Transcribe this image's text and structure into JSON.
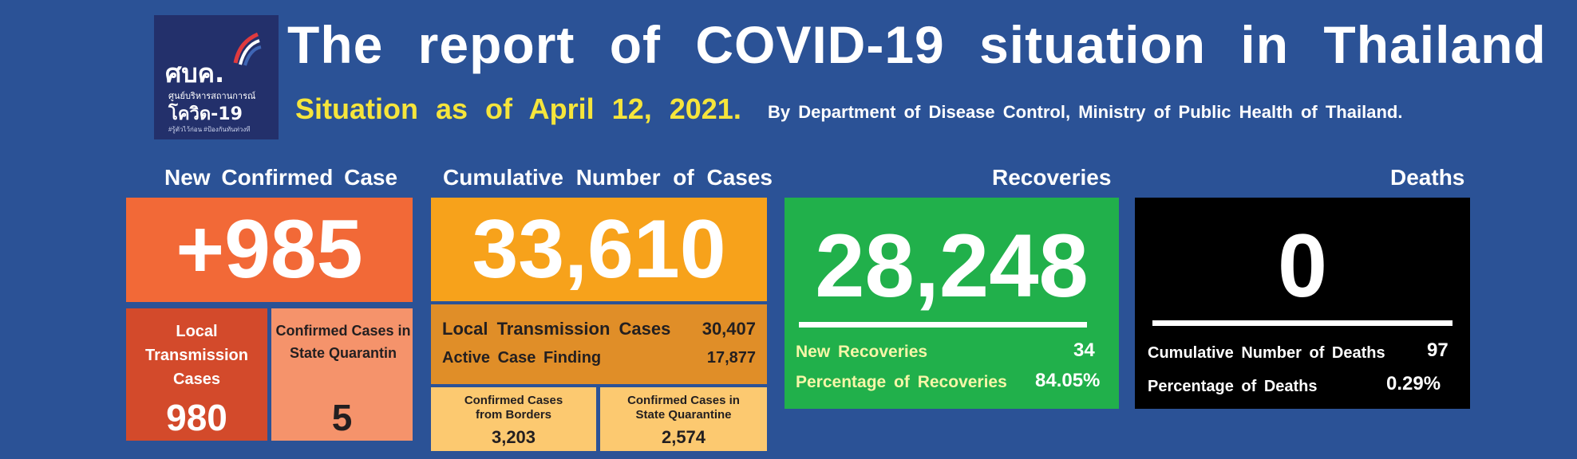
{
  "logo": {
    "name": "ศบค.",
    "line1": "ศูนย์บริหารสถานการณ์",
    "line2": "โควิด-19",
    "tagline": "#รู้ตัวไว้ก่อน #ป้องกันทันท่วงที"
  },
  "header": {
    "title": "The report of COVID-19 situation in Thailand",
    "subtitle": "Situation as of April 12, 2021.",
    "byline": "By Department of Disease Control, Ministry of Public Health of Thailand."
  },
  "new_confirmed": {
    "heading": "New Confirmed Case",
    "value": "+985",
    "local_label": "Local Transmission Cases",
    "local_value": "980",
    "quarantine_label": "Confirmed Cases in State Quarantin",
    "quarantine_value": "5"
  },
  "cumulative": {
    "heading": "Cumulative Number of Cases",
    "value": "33,610",
    "local_label": "Local Transmission Cases",
    "local_value": "30,407",
    "acf_label": "Active Case Finding",
    "acf_value": "17,877",
    "borders_label": "Confirmed Cases from Borders",
    "borders_value": "3,203",
    "sq_label": "Confirmed Cases in State Quarantine",
    "sq_value": "2,574"
  },
  "recoveries": {
    "heading": "Recoveries",
    "value": "28,248",
    "new_label": "New Recoveries",
    "new_value": "34",
    "pct_label": "Percentage of Recoveries",
    "pct_value": "84.05%"
  },
  "deaths": {
    "heading": "Deaths",
    "value": "0",
    "cum_label": "Cumulative Number of Deaths",
    "cum_value": "97",
    "pct_label": "Percentage of Deaths",
    "pct_value": "0.29%"
  },
  "colors": {
    "background": "#2b5296",
    "new_case": "#f26937",
    "local": "#d34a2b",
    "quarantine": "#f5936b",
    "cumulative": "#f7a21b",
    "cumulative_sub": "#e08e28",
    "cumulative_light": "#fcc970",
    "recoveries": "#21b04b",
    "deaths": "#000000",
    "title_yellow": "#f6e53b"
  }
}
